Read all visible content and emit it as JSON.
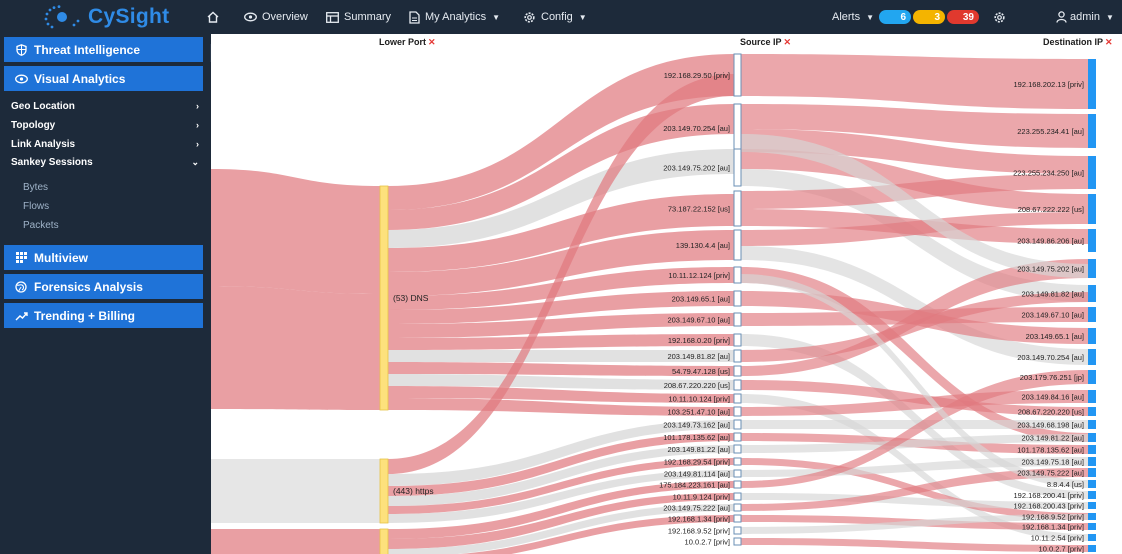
{
  "app": {
    "name": "CySight"
  },
  "topnav": {
    "items": [
      {
        "label": "Overview"
      },
      {
        "label": "Summary"
      },
      {
        "label": "My Analytics"
      },
      {
        "label": "Config"
      }
    ],
    "alerts": {
      "label": "Alerts",
      "blue": "6",
      "yellow": "3",
      "red": "39"
    },
    "user": {
      "label": "admin"
    }
  },
  "sidebar": {
    "threat": "Threat Intelligence",
    "visual": "Visual Analytics",
    "sub": [
      "Geo Location",
      "Topology",
      "Link Analysis",
      "Sankey Sessions"
    ],
    "leaves": [
      "Bytes",
      "Flows",
      "Packets"
    ],
    "multiview": "Multiview",
    "forensics": "Forensics Analysis",
    "trending": "Trending + Billing"
  },
  "colors": {
    "sidebar": "#1d2a3a",
    "button": "#1f73d8",
    "link_red": "#e07a80",
    "link_grey": "#d6d6d6",
    "port_node": "#fde17c",
    "dest_node": "#2196f3"
  },
  "headers": {
    "port": "Lower Port",
    "source": "Source IP",
    "dest": "Destination IP"
  },
  "ports": [
    {
      "label": "(53) DNS"
    },
    {
      "label": "(443) https"
    },
    {
      "label": ""
    }
  ],
  "sources": [
    "192.168.29.50 [priv]",
    "203.149.70.254 [au]",
    "203.149.75.202 [au]",
    "73.187.22.152 [us]",
    "139.130.4.4 [au]",
    "10.11.12.124 [priv]",
    "203.149.65.1 [au]",
    "203.149.67.10 [au]",
    "192.168.0.20 [priv]",
    "203.149.81.82 [au]",
    "54.79.47.128 [us]",
    "208.67.220.220 [us]",
    "10.11.10.124 [priv]",
    "103.251.47.10 [au]",
    "203.149.73.162 [au]",
    "101.178.135.62 [au]",
    "203.149.81.22 [au]",
    "192.168.29.54 [priv]",
    "203.149.81.114 [au]",
    "175.184.223.161 [au]",
    "10.11.9.124 [priv]",
    "203.149.75.222 [au]",
    "192.168.1.34 [priv]",
    "192.168.9.52 [priv]",
    "10.0.2.7 [priv]"
  ],
  "dests": [
    "192.168.202.13 [priv]",
    "223.255.234.41 [au]",
    "223.255.234.250 [au]",
    "208.67.222.222 [us]",
    "203.149.86.206 [au]",
    "203.149.75.202 [au]",
    "203.149.81.82 [au]",
    "203.149.67.10 [au]",
    "203.149.65.1 [au]",
    "203.149.70.254 [au]",
    "203.179.76.251 [jp]",
    "203.149.84.16 [au]",
    "208.67.220.220 [us]",
    "203.149.68.198 [au]",
    "203.149.81.22 [au]",
    "101.178.135.62 [au]",
    "203.149.75.18 [au]",
    "203.149.75.222 [au]",
    "8.8.4.4 [us]",
    "192.168.200.41 [priv]",
    "192.168.200.43 [priv]",
    "192.168.9.52 [priv]",
    "192.168.1.34 [priv]",
    "10.11.2.54 [priv]",
    "10.0.2.7 [priv]"
  ]
}
